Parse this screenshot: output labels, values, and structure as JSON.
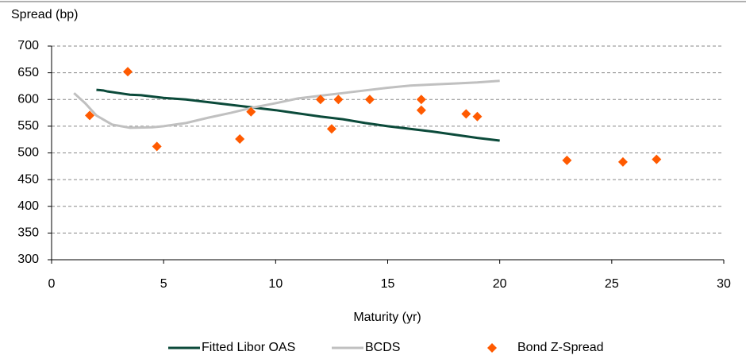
{
  "chart_data": {
    "type": "line",
    "ylabel": "Spread (bp)",
    "xlabel": "Maturity (yr)",
    "xlim": [
      0,
      30
    ],
    "xticks": [
      0,
      5,
      10,
      15,
      20,
      25,
      30
    ],
    "ylim": [
      300,
      700
    ],
    "yticks": [
      300,
      350,
      400,
      450,
      500,
      550,
      600,
      650,
      700
    ],
    "grid": true,
    "legend": "bottom",
    "series": [
      {
        "name": "Fitted Libor OAS",
        "type": "line",
        "color": "#0b4a3a",
        "x": [
          2,
          2.3,
          2.5,
          3,
          3.5,
          4,
          5,
          6,
          7,
          8,
          9,
          10,
          11,
          12,
          13,
          14,
          15,
          16,
          17,
          18,
          19,
          20
        ],
        "values": [
          618,
          617,
          615,
          612,
          609,
          608,
          603,
          600,
          595,
          590,
          585,
          580,
          574,
          568,
          563,
          556,
          550,
          545,
          540,
          534,
          528,
          523
        ]
      },
      {
        "name": "BCDS",
        "type": "line",
        "color": "#c0c0c0",
        "x": [
          1,
          1.5,
          2,
          2.7,
          3.5,
          4.5,
          5,
          6,
          7,
          8,
          9,
          10,
          11,
          12,
          13,
          14,
          15,
          16,
          17,
          18,
          19,
          20
        ],
        "values": [
          612,
          593,
          570,
          553,
          547,
          548,
          550,
          556,
          566,
          575,
          585,
          593,
          602,
          607,
          612,
          617,
          622,
          626,
          628,
          630,
          632,
          635
        ]
      },
      {
        "name": "Bond Z-Spread",
        "type": "scatter",
        "color": "#ff5a00",
        "x": [
          1.7,
          3.4,
          4.7,
          8.4,
          8.9,
          12,
          12.5,
          12.8,
          14.2,
          16.5,
          16.5,
          18.5,
          19,
          23,
          25.5,
          27
        ],
        "values": [
          570,
          652,
          512,
          526,
          577,
          600,
          545,
          600,
          600,
          580,
          600,
          573,
          568,
          486,
          483,
          488
        ]
      }
    ]
  }
}
